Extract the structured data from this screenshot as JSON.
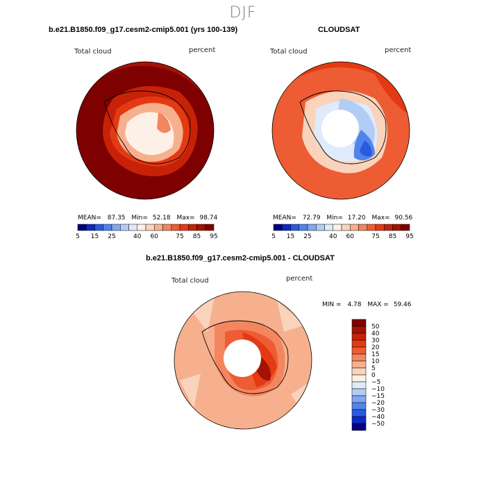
{
  "title": "DJF",
  "palette": [
    "#00007f",
    "#0a2ac8",
    "#2a5ae0",
    "#4f85ea",
    "#7ea9f0",
    "#b2cdf5",
    "#dfeafb",
    "#fdf0e6",
    "#f9d3bb",
    "#f7b08e",
    "#f3865f",
    "#ee5c33",
    "#e33a14",
    "#c72208",
    "#a51205",
    "#7f0000"
  ],
  "absolute_bounds": [
    5,
    10,
    15,
    20,
    25,
    30,
    35,
    40,
    50,
    60,
    65,
    70,
    75,
    80,
    85,
    90,
    95
  ],
  "absolute_tick_labels": [
    "5",
    "15",
    "25",
    "40",
    "60",
    "75",
    "85",
    "95"
  ],
  "panels": {
    "model": {
      "title": "b.e21.B1850.f09_g17.cesm2-cmip5.001 (yrs 100-139)",
      "variable": "Total cloud",
      "units": "percent",
      "stats": {
        "mean_label": "MEAN=",
        "mean": "87.35",
        "min_label": "Min=",
        "min": "52.18",
        "max_label": "Max=",
        "max": "98.74"
      }
    },
    "obs": {
      "title": "CLOUDSAT",
      "variable": "Total cloud",
      "units": "percent",
      "stats": {
        "mean_label": "MEAN=",
        "mean": "72.79",
        "min_label": "Min=",
        "min": "17.20",
        "max_label": "Max=",
        "max": "90.56"
      }
    },
    "diff": {
      "title": "b.e21.B1850.f09_g17.cesm2-cmip5.001 - CLOUDSAT",
      "variable": "Total cloud",
      "units": "percent",
      "stats": {
        "min_label": "MIN =",
        "min": "4.78",
        "max_label": "MAX =",
        "max": "59.46"
      },
      "colorbar_labels": [
        "50",
        "40",
        "30",
        "20",
        "15",
        "10",
        "5",
        "0",
        "−5",
        "−10",
        "−15",
        "−20",
        "−30",
        "−40",
        "−50"
      ]
    }
  },
  "chart_data": [
    {
      "type": "heatmap",
      "projection": "south-polar-stereographic",
      "title": "b.e21.B1850.f09_g17.cesm2-cmip5.001 (yrs 100-139)",
      "variable": "Total cloud",
      "units": "percent",
      "mean": 87.35,
      "min": 52.18,
      "max": 98.74,
      "colorbar_range": [
        5,
        95
      ]
    },
    {
      "type": "heatmap",
      "projection": "south-polar-stereographic",
      "title": "CLOUDSAT",
      "variable": "Total cloud",
      "units": "percent",
      "mean": 72.79,
      "min": 17.2,
      "max": 90.56,
      "colorbar_range": [
        5,
        95
      ]
    },
    {
      "type": "heatmap",
      "projection": "south-polar-stereographic",
      "title": "b.e21.B1850.f09_g17.cesm2-cmip5.001 - CLOUDSAT",
      "variable": "Total cloud",
      "units": "percent",
      "min": 4.78,
      "max": 59.46,
      "colorbar_levels": [
        -50,
        -40,
        -30,
        -20,
        -15,
        -10,
        -5,
        0,
        5,
        10,
        15,
        20,
        30,
        40,
        50
      ]
    }
  ]
}
